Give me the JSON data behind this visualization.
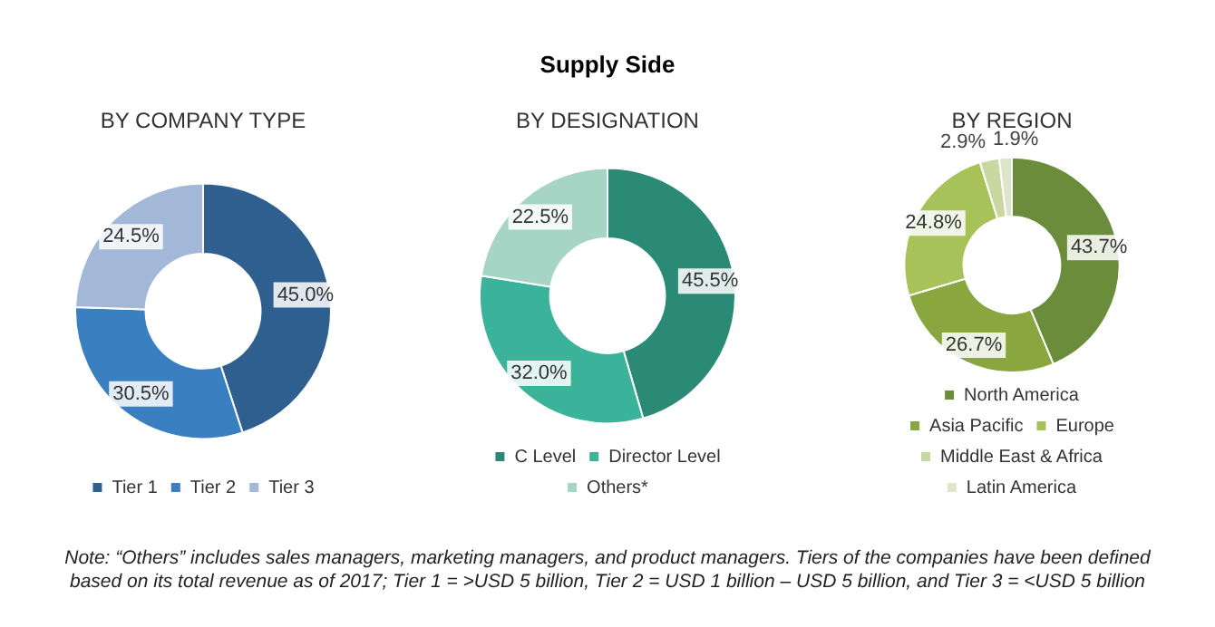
{
  "chart_data": [
    {
      "type": "other",
      "title": "Supply Side",
      "annotations": [
        "Note: “Others” includes sales managers, marketing managers, and product managers. Tiers of the companies have been defined based on its total revenue as of 2017; Tier 1 = >USD 5 billion, Tier 2 = USD 1 billion – USD 5 billion, and Tier 3 = <USD 5 billion"
      ]
    },
    {
      "type": "donut",
      "title": "BY COMPANY TYPE",
      "categories": [
        "Tier 1",
        "Tier 2",
        "Tier 3"
      ],
      "values": [
        45.0,
        30.5,
        24.5
      ],
      "colors": [
        "#2e5f8f",
        "#3a7fc0",
        "#a3b8d8"
      ],
      "value_labels": [
        "45.0%",
        "30.5%",
        "24.5%"
      ],
      "legend": "bottom"
    },
    {
      "type": "donut",
      "title": "BY DESIGNATION",
      "categories": [
        "C Level",
        "Director Level",
        "Others*"
      ],
      "values": [
        45.5,
        32.0,
        22.5
      ],
      "colors": [
        "#2a8a76",
        "#3bb39a",
        "#a6d5c5"
      ],
      "value_labels": [
        "45.5%",
        "32.0%",
        "22.5%"
      ],
      "legend": "bottom"
    },
    {
      "type": "donut",
      "title": "BY REGION",
      "categories": [
        "North America",
        "Asia Pacific",
        "Europe",
        "Middle East & Africa",
        "Latin America"
      ],
      "values": [
        43.7,
        26.7,
        24.8,
        2.9,
        1.9
      ],
      "colors": [
        "#6b8c3a",
        "#8aa63e",
        "#a8c25a",
        "#c8d8a0",
        "#dde6c8"
      ],
      "value_labels": [
        "43.7%",
        "26.7%",
        "24.8%",
        "2.9%",
        "1.9%"
      ],
      "legend": "bottom"
    }
  ]
}
